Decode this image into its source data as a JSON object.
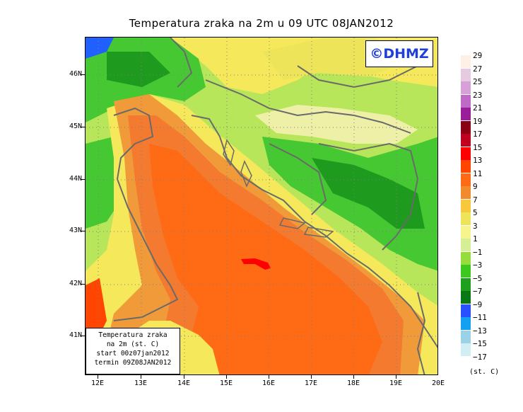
{
  "title": "Temperatura zraka na 2m u 09 UTC 08JAN2012",
  "logo": "©DHMZ",
  "info_box": {
    "line1": "Temperatura zraka",
    "line2": "na 2m (st. C)",
    "line3": "start 00z07jan2012",
    "line4": "termin 09Z08JAN2012"
  },
  "latitude_labels": [
    "46N",
    "45N",
    "44N",
    "43N",
    "42N",
    "41N"
  ],
  "longitude_labels": [
    "12E",
    "13E",
    "14E",
    "15E",
    "16E",
    "17E",
    "18E",
    "19E",
    "20E"
  ],
  "legend": {
    "labels": [
      "29",
      "27",
      "25",
      "23",
      "21",
      "19",
      "17",
      "15",
      "13",
      "11",
      "9",
      "7",
      "5",
      "3",
      "1",
      "−1",
      "−3",
      "−5",
      "−7",
      "−9",
      "−11",
      "−13",
      "−15",
      "−17"
    ],
    "colors": [
      "#fff0e6",
      "#e6cbe0",
      "#d8a0d8",
      "#c06ac8",
      "#9a1e9a",
      "#8a0014",
      "#c0001e",
      "#ff0000",
      "#ff4500",
      "#ff6a14",
      "#f08c2e",
      "#f7c83c",
      "#eee45a",
      "#f5f58c",
      "#d6ee96",
      "#96dc3c",
      "#3cc81e",
      "#1ea01e",
      "#0a7814",
      "#2850ff",
      "#14a0f0",
      "#9ad2e6",
      "#d2eef5",
      "#ffffff"
    ],
    "unit": "(st. C)"
  },
  "colors": {
    "sea_warm": "#f47a2f",
    "sea_warmer": "#ff6414",
    "coast_warm": "#f09a3a",
    "yellow": "#f5e85a",
    "light_yellow": "#eef0a8",
    "light_green": "#b8e65a",
    "green": "#46c832",
    "dark_green": "#1e9a1e",
    "blue": "#2060ff",
    "border": "#6a6a6a"
  }
}
